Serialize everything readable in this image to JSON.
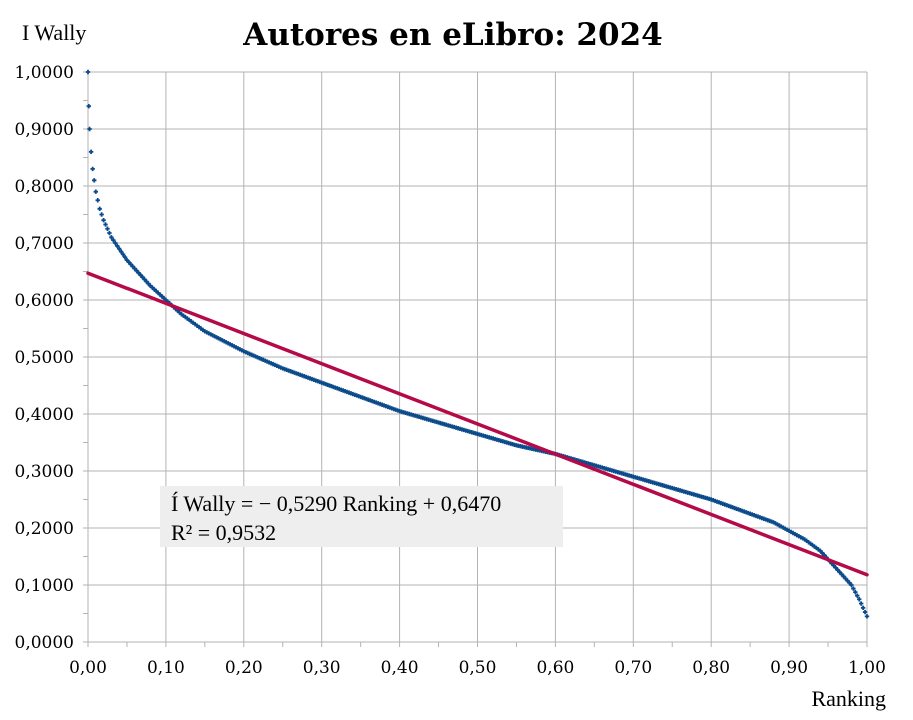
{
  "chart_data": {
    "type": "scatter",
    "title": "Autores en eLibro: 2024",
    "ylabel": "I Wally",
    "xlabel": "Ranking",
    "xlim": [
      0,
      1
    ],
    "ylim": [
      0,
      1
    ],
    "grid": true,
    "x_ticks": [
      "0,00",
      "0,10",
      "0,20",
      "0,30",
      "0,40",
      "0,50",
      "0,60",
      "0,70",
      "0,80",
      "0,90",
      "1,00"
    ],
    "y_ticks": [
      "0,0000",
      "0,1000",
      "0,2000",
      "0,3000",
      "0,4000",
      "0,5000",
      "0,6000",
      "0,7000",
      "0,8000",
      "0,9000",
      "1,0000"
    ],
    "series": [
      {
        "color": "#0b4a8b",
        "x": [
          0.0,
          0.001,
          0.002,
          0.004,
          0.006,
          0.008,
          0.01,
          0.015,
          0.02,
          0.03,
          0.04,
          0.05,
          0.06,
          0.08,
          0.1,
          0.12,
          0.15,
          0.2,
          0.25,
          0.3,
          0.35,
          0.4,
          0.45,
          0.5,
          0.55,
          0.6,
          0.65,
          0.7,
          0.75,
          0.8,
          0.85,
          0.88,
          0.9,
          0.92,
          0.94,
          0.95,
          0.96,
          0.97,
          0.98,
          0.99,
          1.0
        ],
        "y": [
          1.0,
          0.94,
          0.9,
          0.86,
          0.83,
          0.81,
          0.79,
          0.76,
          0.74,
          0.71,
          0.69,
          0.67,
          0.655,
          0.625,
          0.6,
          0.575,
          0.545,
          0.51,
          0.48,
          0.455,
          0.43,
          0.405,
          0.385,
          0.365,
          0.345,
          0.33,
          0.31,
          0.29,
          0.27,
          0.25,
          0.225,
          0.21,
          0.195,
          0.18,
          0.16,
          0.145,
          0.13,
          0.115,
          0.1,
          0.075,
          0.045
        ]
      },
      {
        "type": "line",
        "color": "#b40a48",
        "x": [
          0,
          1
        ],
        "y": [
          0.647,
          0.118
        ]
      }
    ],
    "annotation": {
      "line1": "Í Wally = − 0,5290 Ranking + 0,6470",
      "line2": "R² = 0,9532"
    }
  }
}
